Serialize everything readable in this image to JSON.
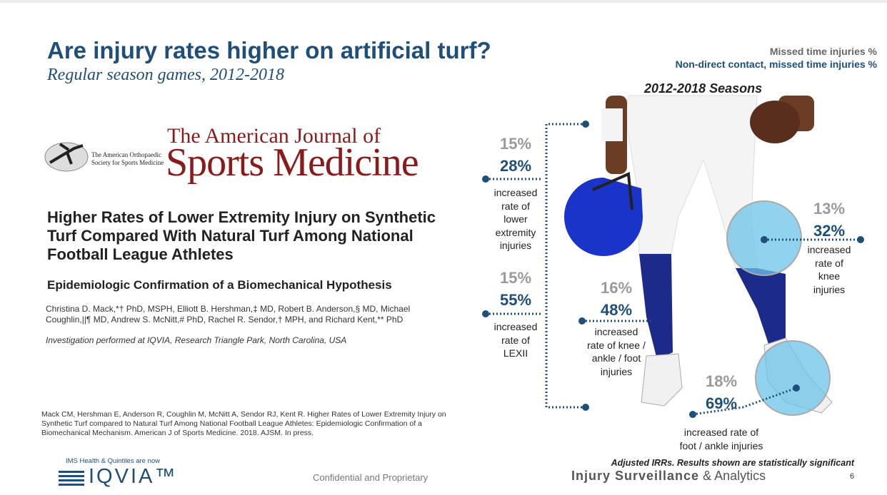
{
  "header": {
    "title": "Are injury rates higher on artificial turf?",
    "subtitle": "Regular season games, 2012-2018"
  },
  "legend": [
    "Missed time injuries %",
    "Non-direct contact, missed time injuries %"
  ],
  "figure_title": "2012-2018 Seasons",
  "journal": {
    "society": "The American Orthopaedic Society for Sports Medicine",
    "name_line1": "The American Journal of",
    "name_line2": "Sports Medicine"
  },
  "article": {
    "title": "Higher Rates of Lower Extremity Injury on Synthetic Turf Compared With Natural Turf Among National Football League Athletes",
    "subtitle": "Epidemiologic Confirmation of a Biomechanical Hypothesis",
    "authors": "Christina D. Mack,*† PhD, MSPH, Elliott B. Hershman,‡ MD, Robert B. Anderson,§ MD, Michael Coughlin,||¶ MD, Andrew S. McNitt,# PhD, Rachel R. Sendor,† MPH, and Richard Kent,** PhD",
    "institution": "Investigation performed at IQVIA, Research Triangle Park, North Carolina, USA"
  },
  "callouts": [
    {
      "missed": "15%",
      "non_direct": "28%",
      "label": [
        "increased",
        "rate of",
        "lower",
        "extremity",
        "injuries"
      ]
    },
    {
      "missed": "15%",
      "non_direct": "55%",
      "label": [
        "increased",
        "rate of",
        "LEXII"
      ]
    },
    {
      "missed": "16%",
      "non_direct": "48%",
      "label": [
        "increased",
        "rate of knee /",
        "ankle /  foot",
        "injuries"
      ]
    },
    {
      "missed": "13%",
      "non_direct": "32%",
      "label": [
        "increased",
        "rate of",
        "knee",
        "injuries"
      ]
    },
    {
      "missed": "18%",
      "non_direct": "69%",
      "label": [
        "increased rate of",
        "foot / ankle injuries"
      ]
    }
  ],
  "citation": "Mack CM, Hershman E, Anderson R, Coughlin M, McNitt A, Sendor RJ, Kent R. Higher Rates of Lower Extremity Injury on Synthetic Turf compared to Natural Turf Among National Football League Athletes: Epidemiologic Confirmation of a Biomechanical Mechanism. American J of Sports Medicine. 2018. AJSM. In press.",
  "footer": {
    "company_note": "IMS Health & Quintiles are now",
    "company": "IQVIA™",
    "confidential": "Confidential and Proprietary",
    "note": "Adjusted IRRs.  Results shown are statistically significant",
    "program_bold": "Injury Surveillance",
    "program_rest": "& Analytics",
    "page": 6
  }
}
